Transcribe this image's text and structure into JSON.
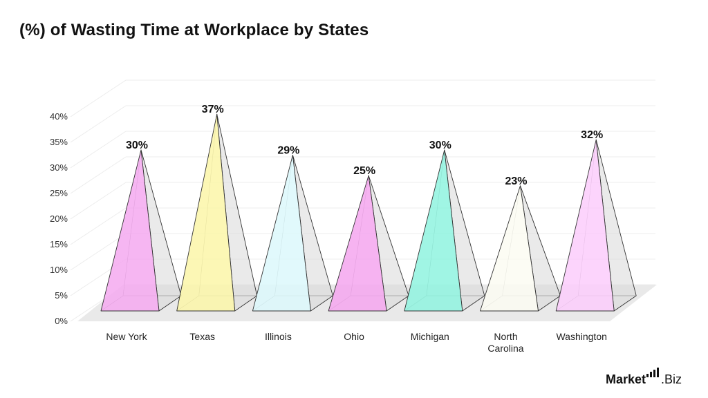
{
  "chart_data": {
    "type": "bar",
    "title": "(%) of Wasting Time at Workplace by States",
    "categories": [
      "New York",
      "Texas",
      "Illinois",
      "Ohio",
      "Michigan",
      "North Carolina",
      "Washington"
    ],
    "category_lines": [
      [
        "New York"
      ],
      [
        "Texas"
      ],
      [
        "Illinois"
      ],
      [
        "Ohio"
      ],
      [
        "Michigan"
      ],
      [
        "North",
        "Carolina"
      ],
      [
        "Washington"
      ]
    ],
    "values": [
      30,
      37,
      29,
      25,
      30,
      23,
      32
    ],
    "value_labels": [
      "30%",
      "37%",
      "29%",
      "25%",
      "30%",
      "23%",
      "32%"
    ],
    "ylim": [
      0,
      40
    ],
    "yticks": [
      "0%",
      "5%",
      "10%",
      "15%",
      "20%",
      "25%",
      "30%",
      "35%",
      "40%"
    ],
    "grid": true,
    "bar_shape": "3d-pyramid",
    "colors": [
      "#f5a9f0",
      "#fbf6a8",
      "#dcf8fb",
      "#f5a6ee",
      "#8ff3df",
      "#fbfbf2",
      "#fccdfb"
    ]
  },
  "brand": {
    "market": "Market",
    "biz": ".Biz"
  }
}
